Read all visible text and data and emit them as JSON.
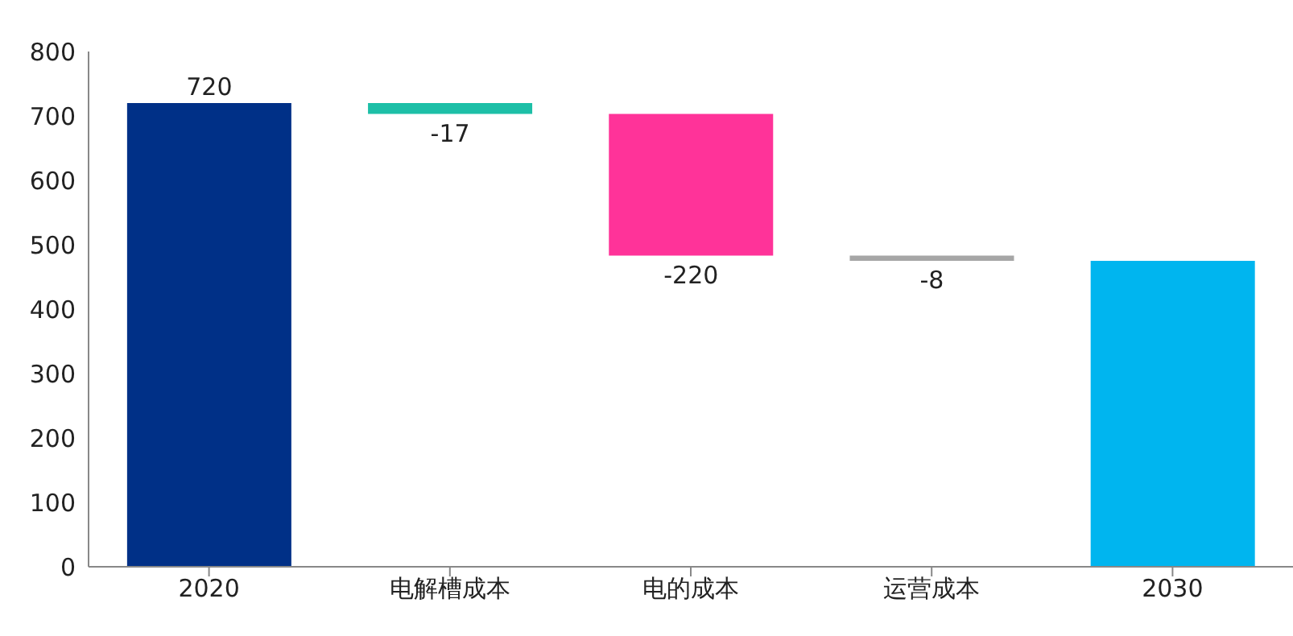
{
  "chart_data": {
    "type": "bar",
    "categories": [
      "2020",
      "电解槽成本",
      "电的成本",
      "运营成本",
      "2030"
    ],
    "values": [
      720,
      -17,
      -220,
      -8,
      475
    ],
    "base": [
      0,
      720,
      703,
      483,
      0
    ],
    "colors": [
      "#003087",
      "#1dbfa7",
      "#ff3399",
      "#a6a6a6",
      "#00b5ef"
    ],
    "value_labels": [
      "720",
      "-17",
      "-220",
      "-8",
      null
    ],
    "ylim": [
      0,
      800
    ],
    "yticks": [
      0,
      100,
      200,
      300,
      400,
      500,
      600,
      700,
      800
    ],
    "grid": false,
    "legend": false
  }
}
